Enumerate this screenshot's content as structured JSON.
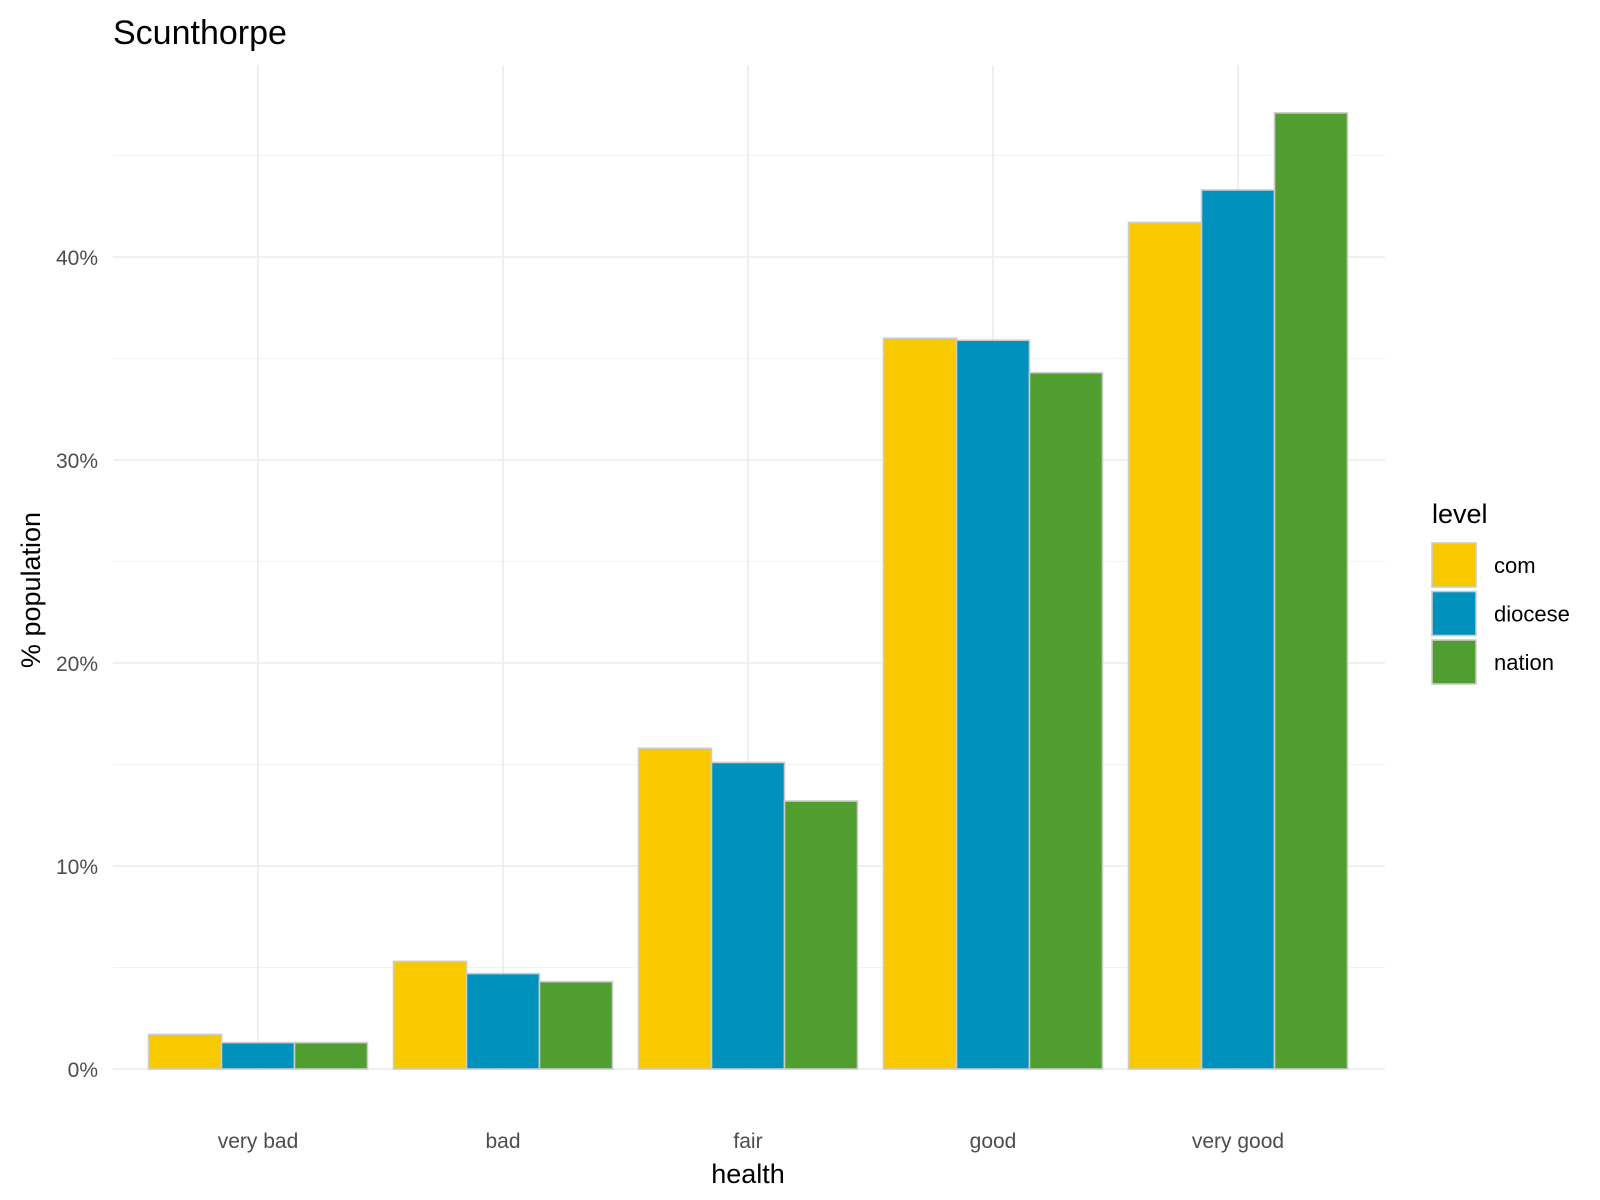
{
  "chart_data": {
    "type": "bar",
    "title": "Scunthorpe",
    "xlabel": "health",
    "ylabel": "% population",
    "categories": [
      "very bad",
      "bad",
      "fair",
      "good",
      "very good"
    ],
    "series": [
      {
        "name": "com",
        "color": "#F9C900",
        "values": [
          1.7,
          5.3,
          15.8,
          36.0,
          41.7
        ]
      },
      {
        "name": "diocese",
        "color": "#0092BD",
        "values": [
          1.3,
          4.7,
          15.1,
          35.9,
          43.3
        ]
      },
      {
        "name": "nation",
        "color": "#519E30",
        "values": [
          1.3,
          4.3,
          13.2,
          34.3,
          47.1
        ]
      }
    ],
    "ylim": [
      0,
      48
    ],
    "yticks": [
      0,
      10,
      20,
      30,
      40
    ],
    "ytick_labels": [
      "0%",
      "10%",
      "20%",
      "30%",
      "40%"
    ],
    "legend": {
      "title": "level",
      "position": "right"
    },
    "grid": true,
    "bar_outline_color": "#cccccc"
  }
}
